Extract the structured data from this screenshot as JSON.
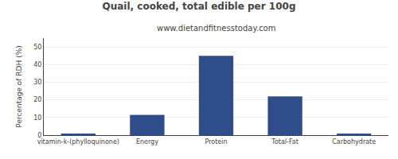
{
  "chart_data": {
    "type": "bar",
    "title": "Quail, cooked, total edible per 100g",
    "subtitle": "www.dietandfitnesstoday.com",
    "ylabel": "Percentage of RDH (%)",
    "categories": [
      "vitamin-k-(phylloquinone)",
      "Energy",
      "Protein",
      "Total-Fat",
      "Carbohydrate"
    ],
    "values": [
      0.5,
      11.5,
      45.0,
      22.0,
      0.5
    ],
    "color": "#2e4d8a",
    "ylim": [
      0,
      55
    ],
    "yticks": [
      0,
      10,
      20,
      30,
      40,
      50
    ],
    "grid": true
  }
}
